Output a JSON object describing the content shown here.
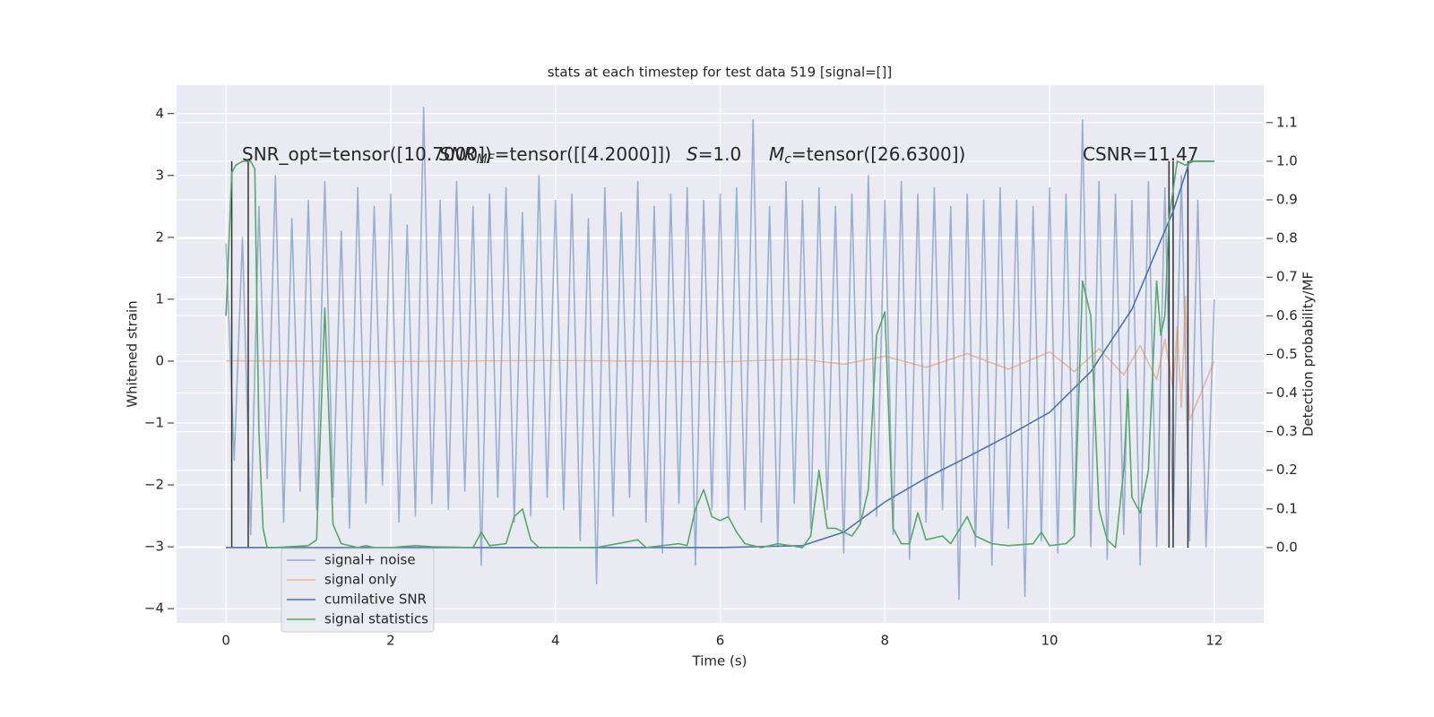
{
  "chart_data": {
    "type": "line",
    "title": "stats at each timestep for test data 519 [signal=[]]",
    "xlabel": "Time (s)",
    "ylabel": "Whitened strain",
    "y2label": "Detection probability/MF",
    "xlim": [
      -0.6,
      12.6
    ],
    "ylim": [
      -4.23,
      4.46
    ],
    "y2lim": [
      -0.195,
      1.197
    ],
    "xticks": [
      0,
      2,
      4,
      6,
      8,
      10,
      12
    ],
    "yticks": [
      {
        "value": -4,
        "label": "−4"
      },
      {
        "value": -3,
        "label": "−3"
      },
      {
        "value": -2,
        "label": "−2"
      },
      {
        "value": -1,
        "label": "−1"
      },
      0,
      1,
      2,
      3,
      4
    ],
    "y2ticks": [
      {
        "value": 0,
        "label": "0.0"
      },
      0.1,
      0.2,
      0.3,
      0.4,
      0.5,
      0.6,
      0.7,
      0.8,
      0.9,
      {
        "value": 1,
        "label": "1.0"
      },
      1.1
    ],
    "grid": true,
    "series": [
      {
        "name": "signal+ noise",
        "color": "#4c72b0",
        "opacity": 0.5,
        "x": [
          0,
          0.1,
          0.2,
          0.3,
          0.4,
          0.5,
          0.6,
          0.7,
          0.8,
          0.9,
          1,
          1.1,
          1.2,
          1.3,
          1.4,
          1.5,
          1.6,
          1.7,
          1.8,
          1.9,
          2,
          2.1,
          2.2,
          2.3,
          2.4,
          2.5,
          2.6,
          2.7,
          2.8,
          2.9,
          3,
          3.1,
          3.2,
          3.3,
          3.4,
          3.5,
          3.6,
          3.7,
          3.8,
          3.9,
          4,
          4.1,
          4.2,
          4.3,
          4.4,
          4.5,
          4.6,
          4.7,
          4.8,
          4.9,
          5,
          5.1,
          5.2,
          5.3,
          5.4,
          5.5,
          5.6,
          5.7,
          5.8,
          5.9,
          6,
          6.1,
          6.2,
          6.3,
          6.4,
          6.5,
          6.6,
          6.7,
          6.8,
          6.9,
          7,
          7.1,
          7.2,
          7.3,
          7.4,
          7.5,
          7.6,
          7.7,
          7.8,
          7.9,
          8,
          8.1,
          8.2,
          8.3,
          8.4,
          8.5,
          8.6,
          8.7,
          8.8,
          8.9,
          9,
          9.1,
          9.2,
          9.3,
          9.4,
          9.5,
          9.6,
          9.7,
          9.8,
          9.9,
          10,
          10.1,
          10.2,
          10.3,
          10.4,
          10.5,
          10.6,
          10.7,
          10.8,
          10.9,
          11,
          11.1,
          11.2,
          11.3,
          11.4,
          11.5,
          11.6,
          11.7,
          11.8,
          11.9,
          12
        ],
        "values": [
          1.9,
          -1.6,
          2.0,
          -2.8,
          2.5,
          -1.9,
          3.0,
          -2.6,
          2.3,
          -2.1,
          2.6,
          -2.4,
          2.9,
          -2.2,
          2.1,
          -2.7,
          2.8,
          -2.3,
          2.5,
          -2.0,
          2.7,
          -2.6,
          2.2,
          -2.5,
          4.1,
          -2.3,
          2.6,
          -2.4,
          2.9,
          -2.1,
          2.5,
          -3.3,
          2.7,
          -2.2,
          2.8,
          -2.6,
          2.4,
          -2.5,
          3.0,
          -2.2,
          2.6,
          -2.4,
          2.7,
          -2.9,
          2.3,
          -3.6,
          2.8,
          -2.5,
          2.4,
          -2.2,
          2.9,
          -2.6,
          2.5,
          -3.1,
          2.7,
          -2.3,
          2.8,
          -3.3,
          2.6,
          -2.4,
          2.7,
          -2.5,
          2.8,
          -2.4,
          3.9,
          -2.6,
          2.5,
          -3.0,
          2.9,
          -2.3,
          2.6,
          -2.7,
          2.8,
          -2.4,
          2.5,
          -3.1,
          2.7,
          -2.6,
          3.0,
          -2.5,
          2.6,
          -2.8,
          2.9,
          -3.2,
          2.7,
          -2.6,
          2.8,
          -2.4,
          2.5,
          -3.85,
          2.7,
          -3.0,
          2.6,
          -3.3,
          2.8,
          -2.7,
          2.6,
          -3.8,
          2.5,
          -2.9,
          2.8,
          -3.1,
          2.7,
          -2.8,
          3.9,
          -3.0,
          2.9,
          -3.2,
          2.7,
          -2.8,
          2.6,
          -3.3,
          2.9,
          -3.0,
          2.8,
          -2.7,
          3.0,
          -2.9,
          2.6,
          -3.0,
          1.0
        ]
      },
      {
        "name": "signal only",
        "color": "#dd8452",
        "opacity": 0.5,
        "x": [
          0,
          2,
          4,
          6,
          7,
          7.5,
          8,
          8.5,
          9,
          9.5,
          10,
          10.3,
          10.6,
          10.9,
          11.1,
          11.3,
          11.4,
          11.5,
          11.55,
          11.6,
          11.65,
          11.7,
          12
        ],
        "values": [
          0.005,
          -0.005,
          0.01,
          -0.01,
          0.03,
          -0.05,
          0.08,
          -0.1,
          0.12,
          -0.13,
          0.15,
          -0.17,
          0.2,
          -0.22,
          0.25,
          -0.3,
          0.35,
          -0.45,
          0.55,
          -0.75,
          1.05,
          -0.95,
          0
        ]
      },
      {
        "name": "cumilative SNR",
        "color": "#4c72b0",
        "axis": "y2",
        "x": [
          0,
          6,
          7,
          7.5,
          8,
          8.5,
          9,
          9.5,
          10,
          10.5,
          11,
          11.3,
          11.5,
          11.7,
          12
        ],
        "values": [
          0,
          0,
          0.005,
          0.04,
          0.118,
          0.18,
          0.234,
          0.29,
          0.35,
          0.455,
          0.617,
          0.77,
          0.87,
          1.0,
          1.0
        ]
      },
      {
        "name": "signal statistics",
        "color": "#55a868",
        "axis": "y2",
        "x": [
          0,
          0.07,
          0.12,
          0.2,
          0.3,
          0.35,
          0.4,
          0.45,
          0.5,
          0.6,
          1.0,
          1.1,
          1.2,
          1.3,
          1.4,
          1.6,
          1.7,
          1.8,
          2.0,
          2.3,
          2.5,
          3.0,
          3.1,
          3.2,
          3.4,
          3.5,
          3.6,
          3.7,
          3.8,
          4.5,
          5.0,
          5.1,
          5.5,
          5.6,
          5.7,
          5.8,
          5.9,
          6.0,
          6.1,
          6.2,
          6.3,
          6.5,
          6.7,
          7.0,
          7.1,
          7.2,
          7.3,
          7.4,
          7.5,
          7.6,
          7.7,
          7.8,
          7.9,
          8.0,
          8.1,
          8.2,
          8.3,
          8.4,
          8.5,
          8.7,
          8.8,
          9.0,
          9.1,
          9.3,
          9.5,
          9.8,
          9.9,
          10.0,
          10.2,
          10.3,
          10.4,
          10.5,
          10.6,
          10.7,
          10.8,
          10.9,
          10.95,
          11.0,
          11.1,
          11.2,
          11.3,
          11.35,
          11.4,
          11.45,
          11.55,
          11.65,
          11.75,
          12
        ],
        "values": [
          0.6,
          0.97,
          0.99,
          1.0,
          1.0,
          0.98,
          0.3,
          0.05,
          0,
          0,
          0.005,
          0.02,
          0.62,
          0.06,
          0.01,
          0,
          0.005,
          0,
          0,
          0.005,
          0.002,
          0,
          0.04,
          0.005,
          0.01,
          0.08,
          0.1,
          0.02,
          0,
          0,
          0.02,
          0,
          0.01,
          0.005,
          0.1,
          0.15,
          0.08,
          0.07,
          0.08,
          0.04,
          0.01,
          0,
          0.01,
          0,
          0.03,
          0.2,
          0.05,
          0.05,
          0.04,
          0.03,
          0.06,
          0.15,
          0.55,
          0.61,
          0.05,
          0.01,
          0.01,
          0.09,
          0.02,
          0.03,
          0.01,
          0.08,
          0.03,
          0.01,
          0.005,
          0.01,
          0.04,
          0.005,
          0.01,
          0.03,
          0.69,
          0.6,
          0.1,
          0.02,
          0,
          0.2,
          0.41,
          0.13,
          0.09,
          0.2,
          0.69,
          0.55,
          0.6,
          0.85,
          1.0,
          0.99,
          1.0,
          1.0
        ]
      }
    ],
    "markers": {
      "color": "#333333",
      "x": [
        0.07,
        0.27,
        11.45,
        11.5,
        11.68
      ],
      "ymin": 0,
      "ymax": 1
    },
    "annotations": [
      {
        "text": "SNR_opt=tensor([10.7000])"
      },
      {
        "base": "SNR",
        "sub": "MF",
        "text": "=tensor([[4.2000]])"
      },
      {
        "base": "S",
        "text": "=1.0"
      },
      {
        "base": "M",
        "sub": "c",
        "text": "=tensor([26.6300])"
      },
      {
        "text": "CSNR=11.47"
      }
    ],
    "legend": "lower left"
  }
}
